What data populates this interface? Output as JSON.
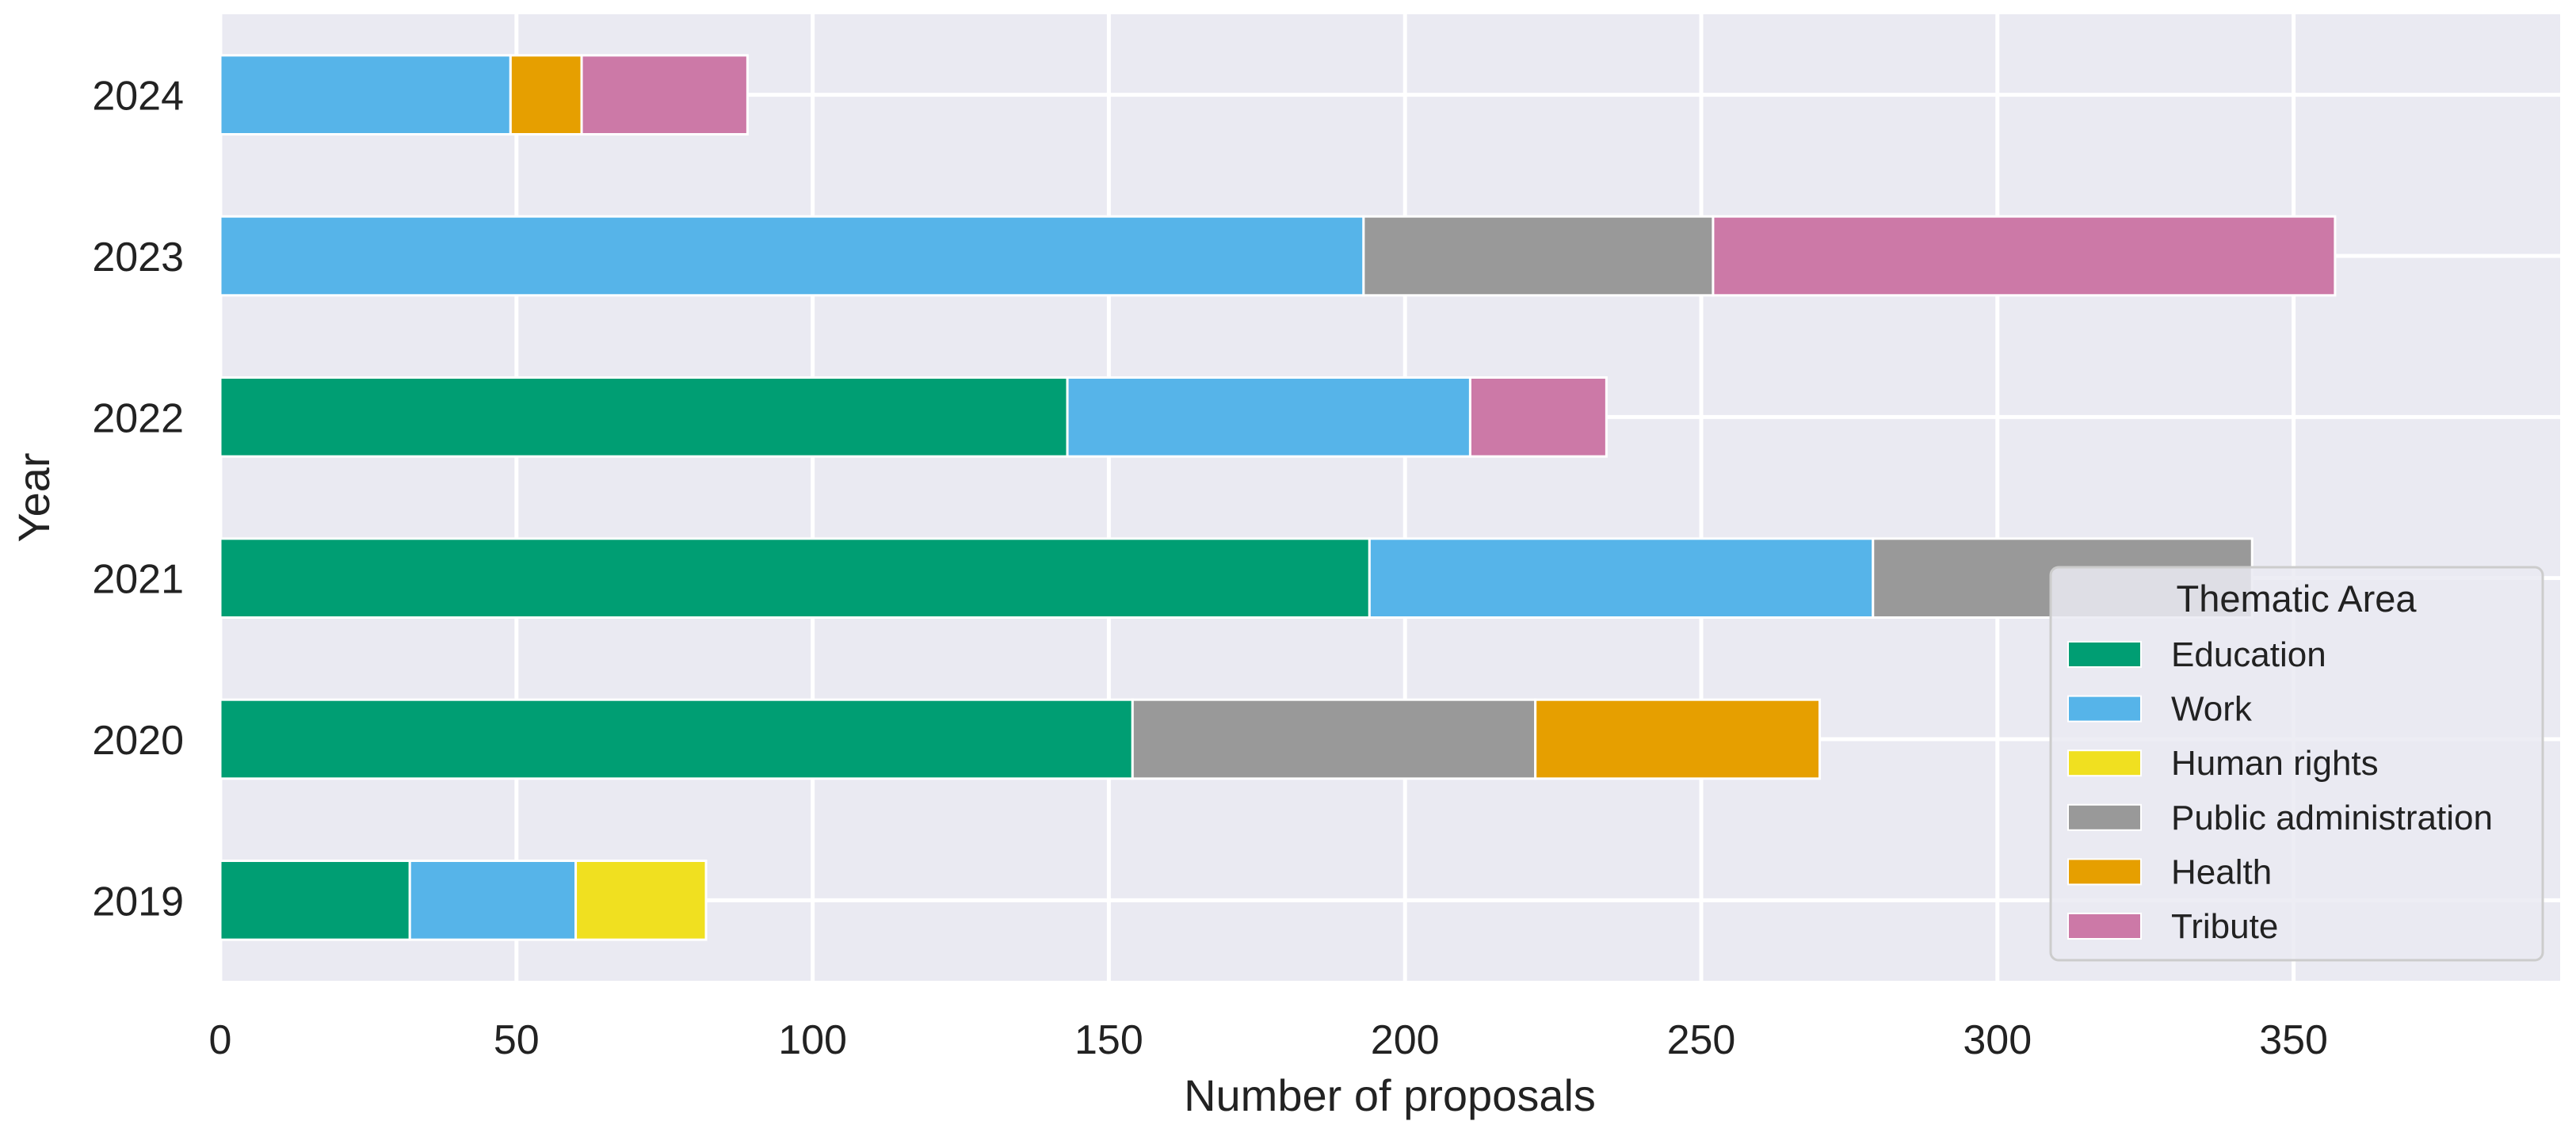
{
  "chart_data": {
    "type": "bar",
    "orientation": "horizontal",
    "stacked": true,
    "xlabel": "Number of proposals",
    "ylabel": "Year",
    "xlim": [
      0,
      395
    ],
    "xticks": [
      0,
      50,
      100,
      150,
      200,
      250,
      300,
      350
    ],
    "categories": [
      "2019",
      "2020",
      "2021",
      "2022",
      "2023",
      "2024"
    ],
    "grid": true,
    "legend": {
      "title": "Thematic Area",
      "placement": "lower-right"
    },
    "series": [
      {
        "name": "Education",
        "color": "#009E73",
        "values": [
          32,
          154,
          194,
          143,
          0,
          0
        ]
      },
      {
        "name": "Work",
        "color": "#56B4E9",
        "values": [
          28,
          0,
          85,
          68,
          193,
          49
        ]
      },
      {
        "name": "Human rights",
        "color": "#F0E020",
        "values": [
          22,
          0,
          0,
          0,
          0,
          0
        ]
      },
      {
        "name": "Public administration",
        "color": "#999999",
        "values": [
          0,
          68,
          64,
          0,
          59,
          0
        ]
      },
      {
        "name": "Health",
        "color": "#E69F00",
        "values": [
          0,
          48,
          0,
          0,
          0,
          12
        ]
      },
      {
        "name": "Tribute",
        "color": "#CC79A7",
        "values": [
          0,
          0,
          0,
          23,
          105,
          28
        ]
      }
    ]
  }
}
